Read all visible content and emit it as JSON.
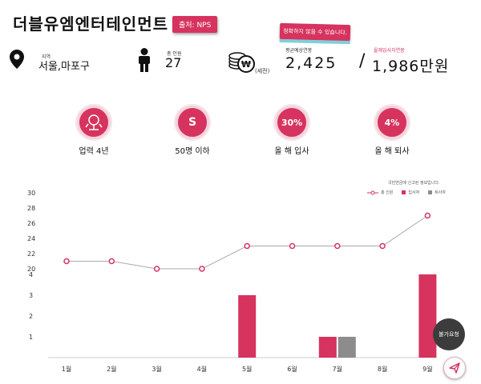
{
  "company": {
    "name": "더블유엠엔터테인먼트",
    "source_badge": "출처: NPS"
  },
  "tooltip": "정확하지 않을 수 있습니다.",
  "info": {
    "region_label": "지역",
    "region_value": "서울,마포구",
    "employees_label": "총 인원",
    "employees_value": "27",
    "tax_note": "(세전)",
    "avg_salary_label": "평균예상연봉",
    "avg_salary_value": "2,425",
    "separator": "/",
    "new_hire_salary_label": "올해입사자연봉",
    "new_hire_salary_value": "1,986만원"
  },
  "stats": [
    {
      "icon": "seedling-icon",
      "value": "",
      "label": "업력 4년"
    },
    {
      "icon": "size-icon",
      "value": "S",
      "label": "50명 이하"
    },
    {
      "icon": "hire-rate-icon",
      "value": "30%",
      "label": "올 해 입사"
    },
    {
      "icon": "exit-rate-icon",
      "value": "4%",
      "label": "올 해 퇴사"
    }
  ],
  "chart_note": "국민연금에 신고된 정보입니다.",
  "accent_color": "#d6335e",
  "exit_color": "#8c8c8c",
  "fab_label": "불가요청",
  "chart_data": {
    "type": "line",
    "categories": [
      "1월",
      "2월",
      "3월",
      "4월",
      "5월",
      "6월",
      "7월",
      "8월",
      "9월"
    ],
    "legend": [
      "총 인원",
      "입사자",
      "퇴사자"
    ],
    "legend_position": "top-right",
    "series": [
      {
        "name": "총 인원",
        "type": "line",
        "values": [
          21,
          21,
          20,
          20,
          23,
          23,
          23,
          23,
          27
        ]
      },
      {
        "name": "입사자",
        "type": "bar",
        "values": [
          0,
          0,
          0,
          0,
          3,
          0,
          1,
          0,
          4
        ]
      },
      {
        "name": "퇴사자",
        "type": "bar",
        "values": [
          0,
          0,
          0,
          0,
          0,
          0,
          1,
          0,
          0
        ]
      }
    ],
    "y_left_ticks": [
      "30",
      "28",
      "26",
      "24",
      "22",
      "20"
    ],
    "y_left_range": [
      20,
      30
    ],
    "y_bar_ticks": [
      "4",
      "3",
      "2",
      "1"
    ],
    "y_bar_range": [
      0,
      4
    ],
    "grid": false
  }
}
